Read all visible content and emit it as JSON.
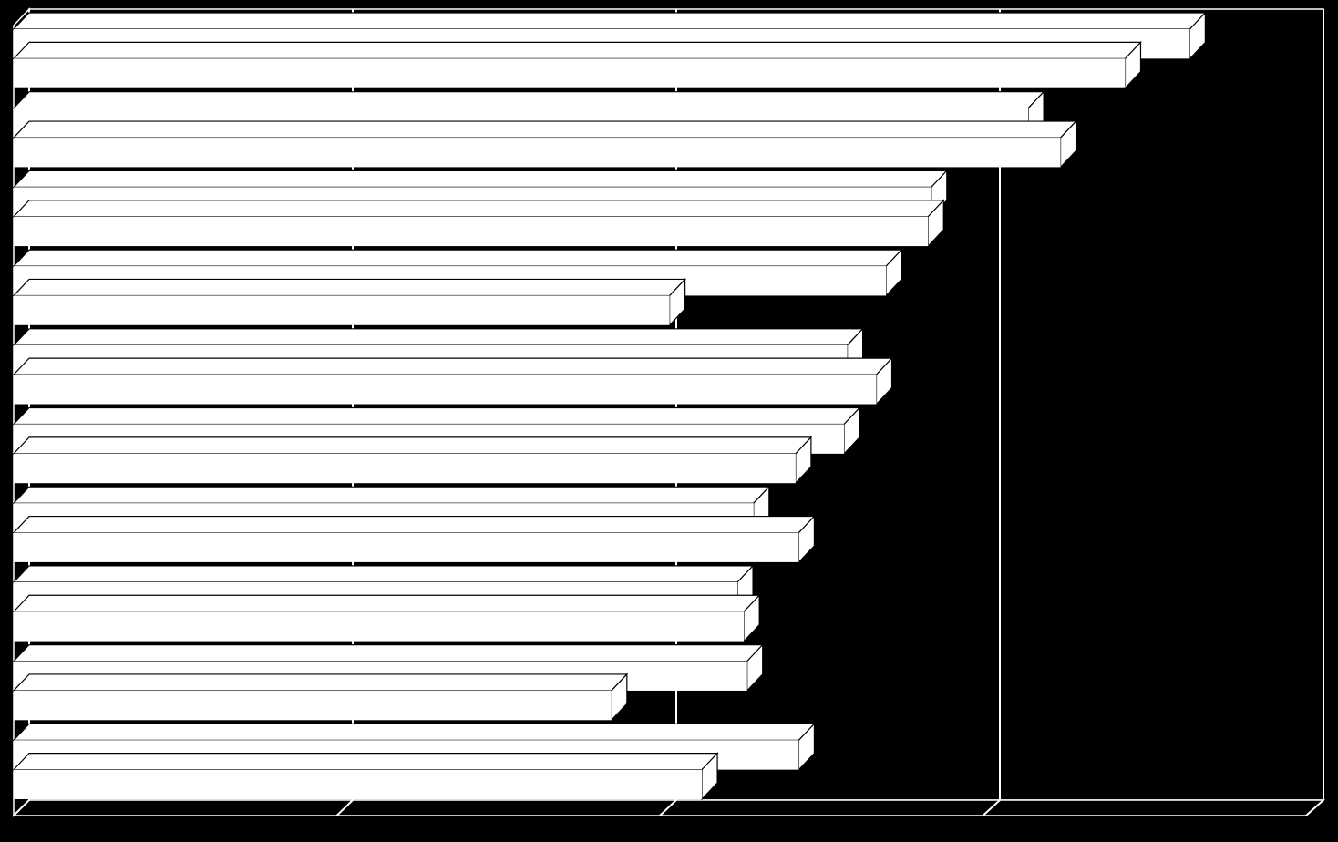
{
  "colors": {
    "background": "#000000",
    "bar_fill": "#ffffff",
    "grid": "#ffffff",
    "wall": "#000000"
  },
  "chart_data": {
    "type": "bar",
    "orientation": "horizontal",
    "style": "3d-clustered",
    "title": "",
    "xlabel": "",
    "ylabel": "",
    "categories": [
      "",
      "",
      "",
      "",
      "",
      "",
      "",
      "",
      "",
      ""
    ],
    "series": [
      {
        "values": [
          3.64,
          3.14,
          2.84,
          2.7,
          2.58,
          2.57,
          2.29,
          2.24,
          2.27,
          2.43
        ]
      },
      {
        "values": [
          3.44,
          3.24,
          2.83,
          2.03,
          2.67,
          2.42,
          2.43,
          2.26,
          1.85,
          2.13
        ]
      }
    ],
    "xlim": [
      0,
      4
    ],
    "x_gridlines": [
      0,
      1,
      2,
      3,
      4
    ],
    "grid": true,
    "tick_labels_visible": false,
    "legend": "none"
  }
}
